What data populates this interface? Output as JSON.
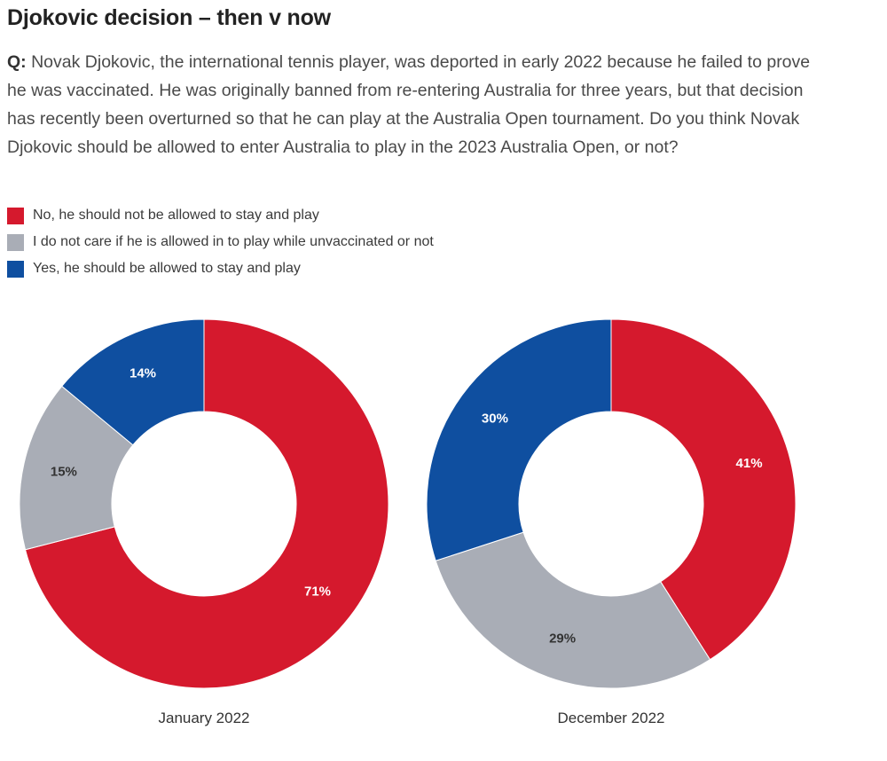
{
  "header": {
    "title": "Djokovic decision – then v now"
  },
  "question": {
    "label": "Q:",
    "text": "Novak Djokovic, the international tennis player, was deported in early 2022 because he failed to prove he was vaccinated. He was originally banned from re-entering Australia for three years, but that decision has recently been overturned so that he can play at the Australia Open tournament. Do you think Novak Djokovic should be allowed to enter Australia to play in the 2023 Australia Open, or not?"
  },
  "legend": {
    "items": [
      {
        "label": "No, he should not be allowed to stay and play",
        "color": "#d5192d"
      },
      {
        "label": "I do not care if he is allowed in to play while unvaccinated or not",
        "color": "#a9adb6"
      },
      {
        "label": "Yes, he should be allowed to stay and play",
        "color": "#0f4fa0"
      }
    ]
  },
  "chart_data": [
    {
      "type": "pie",
      "title": "January 2022",
      "categories": [
        "No, he should not be allowed to stay and play",
        "I do not care if he is allowed in to play while unvaccinated or not",
        "Yes, he should be allowed to stay and play"
      ],
      "values": [
        71,
        15,
        14
      ],
      "labels": [
        "71%",
        "15%",
        "14%"
      ],
      "colors": [
        "#d5192d",
        "#a9adb6",
        "#0f4fa0"
      ],
      "label_colors": [
        "#ffffff",
        "#333333",
        "#ffffff"
      ]
    },
    {
      "type": "pie",
      "title": "December 2022",
      "categories": [
        "No, he should not be allowed to stay and play",
        "I do not care if he is allowed in to play while unvaccinated or not",
        "Yes, he should be allowed to stay and play"
      ],
      "values": [
        41,
        29,
        30
      ],
      "labels": [
        "41%",
        "29%",
        "30%"
      ],
      "colors": [
        "#d5192d",
        "#a9adb6",
        "#0f4fa0"
      ],
      "label_colors": [
        "#ffffff",
        "#333333",
        "#ffffff"
      ]
    }
  ]
}
